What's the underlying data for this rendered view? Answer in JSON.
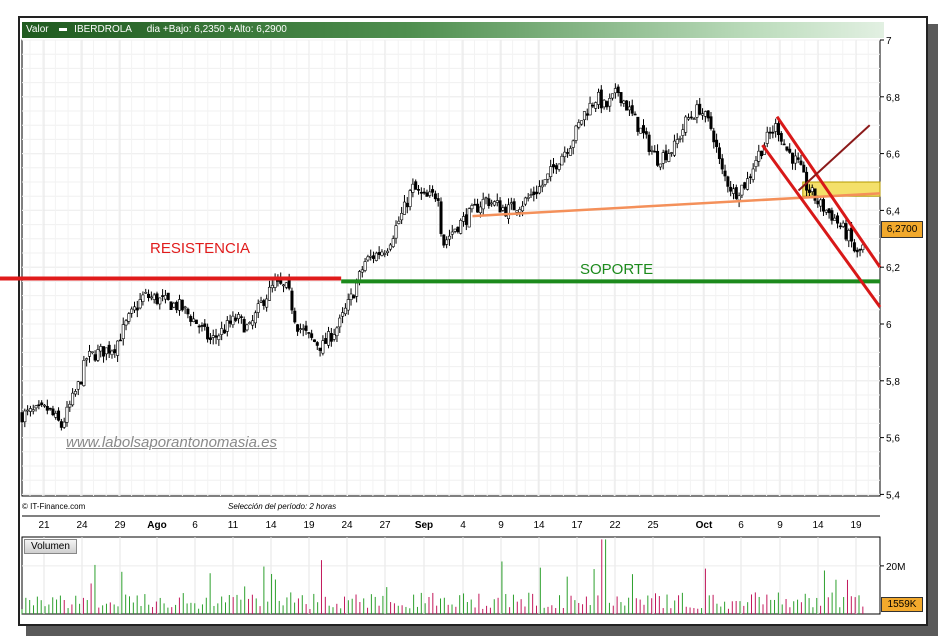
{
  "header": {
    "label_valor": "Valor",
    "ticker": "IBERDROLA",
    "period_info": "dia +Bajo: 6,2350 +Alto: 6,2900"
  },
  "footer": {
    "source": "© IT-Finance.com",
    "selection": "Selección del período: 2 horas"
  },
  "watermark": "www.labolsaporantonomasia.es",
  "annotations": {
    "resistance": "RESISTENCIA",
    "support": "SOPORTE"
  },
  "last_price_label": "6,2700",
  "volume": {
    "panel_label": "Volumen",
    "axis_label": "20M",
    "last_label": "1559K"
  },
  "colors": {
    "candle_up": "#ffffff",
    "candle_down": "#000000",
    "resistance": "#e01b1b",
    "support": "#1c8a1c",
    "trendline": "#f4905a",
    "channel": "#d81818",
    "arrow": "#8b1a1a",
    "zone": "#f4e06a",
    "volume_up": "#2ca02c",
    "volume_down": "#c2185b"
  },
  "chart_data": {
    "type": "candlestick",
    "title": "",
    "xlabel": "",
    "ylabel": "",
    "ylim": [
      5.4,
      7.0
    ],
    "y_ticks": [
      "7",
      "6,8",
      "6,6",
      "6,4",
      "6,2",
      "6",
      "5,8",
      "5,6",
      "5,4"
    ],
    "x_ticks": [
      {
        "label": "21",
        "bold": false
      },
      {
        "label": "24",
        "bold": false
      },
      {
        "label": "29",
        "bold": false
      },
      {
        "label": "Ago",
        "bold": true
      },
      {
        "label": "6",
        "bold": false
      },
      {
        "label": "11",
        "bold": false
      },
      {
        "label": "14",
        "bold": false
      },
      {
        "label": "19",
        "bold": false
      },
      {
        "label": "24",
        "bold": false
      },
      {
        "label": "27",
        "bold": false
      },
      {
        "label": "Sep",
        "bold": true
      },
      {
        "label": "4",
        "bold": false
      },
      {
        "label": "9",
        "bold": false
      },
      {
        "label": "14",
        "bold": false
      },
      {
        "label": "17",
        "bold": false
      },
      {
        "label": "22",
        "bold": false
      },
      {
        "label": "25",
        "bold": false
      },
      {
        "label": "Oct",
        "bold": true
      },
      {
        "label": "6",
        "bold": false
      },
      {
        "label": "9",
        "bold": false
      },
      {
        "label": "14",
        "bold": false
      },
      {
        "label": "19",
        "bold": false
      }
    ],
    "x_range": [
      0,
      100
    ],
    "close_path": [
      [
        0.0,
        5.68
      ],
      [
        3.0,
        5.7
      ],
      [
        4.6,
        5.64
      ],
      [
        6.8,
        5.8
      ],
      [
        7.5,
        5.88
      ],
      [
        9.0,
        5.9
      ],
      [
        10.8,
        5.92
      ],
      [
        12.5,
        6.02
      ],
      [
        14.2,
        6.1
      ],
      [
        16.5,
        6.08
      ],
      [
        18.5,
        6.06
      ],
      [
        20.5,
        6.0
      ],
      [
        22.0,
        5.94
      ],
      [
        25.0,
        6.02
      ],
      [
        26.5,
        5.98
      ],
      [
        28.0,
        6.08
      ],
      [
        29.5,
        6.14
      ],
      [
        31.0,
        6.12
      ],
      [
        32.0,
        6.0
      ],
      [
        33.5,
        5.95
      ],
      [
        35.0,
        5.92
      ],
      [
        37.0,
        6.0
      ],
      [
        38.5,
        6.1
      ],
      [
        40.0,
        6.22
      ],
      [
        42.5,
        6.27
      ],
      [
        44.5,
        6.4
      ],
      [
        45.5,
        6.48
      ],
      [
        47.0,
        6.44
      ],
      [
        48.5,
        6.46
      ],
      [
        49.0,
        6.28
      ],
      [
        50.5,
        6.34
      ],
      [
        52.0,
        6.38
      ],
      [
        54.0,
        6.44
      ],
      [
        56.5,
        6.4
      ],
      [
        58.5,
        6.43
      ],
      [
        61.0,
        6.5
      ],
      [
        62.5,
        6.58
      ],
      [
        64.0,
        6.64
      ],
      [
        65.5,
        6.74
      ],
      [
        67.0,
        6.8
      ],
      [
        68.0,
        6.76
      ],
      [
        69.5,
        6.82
      ],
      [
        71.0,
        6.74
      ],
      [
        72.5,
        6.66
      ],
      [
        74.0,
        6.58
      ],
      [
        76.0,
        6.62
      ],
      [
        77.5,
        6.72
      ],
      [
        79.0,
        6.76
      ],
      [
        80.5,
        6.68
      ],
      [
        81.5,
        6.54
      ],
      [
        83.0,
        6.46
      ],
      [
        84.5,
        6.5
      ],
      [
        85.5,
        6.58
      ],
      [
        87.0,
        6.66
      ],
      [
        88.0,
        6.7
      ],
      [
        89.0,
        6.62
      ],
      [
        90.5,
        6.56
      ],
      [
        91.5,
        6.48
      ],
      [
        93.0,
        6.42
      ],
      [
        94.5,
        6.38
      ],
      [
        95.5,
        6.34
      ],
      [
        96.5,
        6.3
      ],
      [
        97.3,
        6.24
      ],
      [
        98.0,
        6.27
      ]
    ],
    "overlays": {
      "resistance_level": 6.16,
      "support_level": 6.15,
      "trendline": [
        [
          52.5,
          6.38
        ],
        [
          100.0,
          6.46
        ]
      ],
      "channel_upper": [
        [
          88.0,
          6.73
        ],
        [
          100.0,
          6.2
        ]
      ],
      "channel_lower": [
        [
          86.3,
          6.63
        ],
        [
          100.0,
          6.06
        ]
      ],
      "arrow": [
        [
          90.5,
          6.47
        ],
        [
          98.8,
          6.7
        ]
      ],
      "zone": [
        6.45,
        6.5
      ]
    },
    "volume": {
      "ylim": [
        0,
        32
      ],
      "axis_ticks": [
        "20M"
      ]
    }
  }
}
